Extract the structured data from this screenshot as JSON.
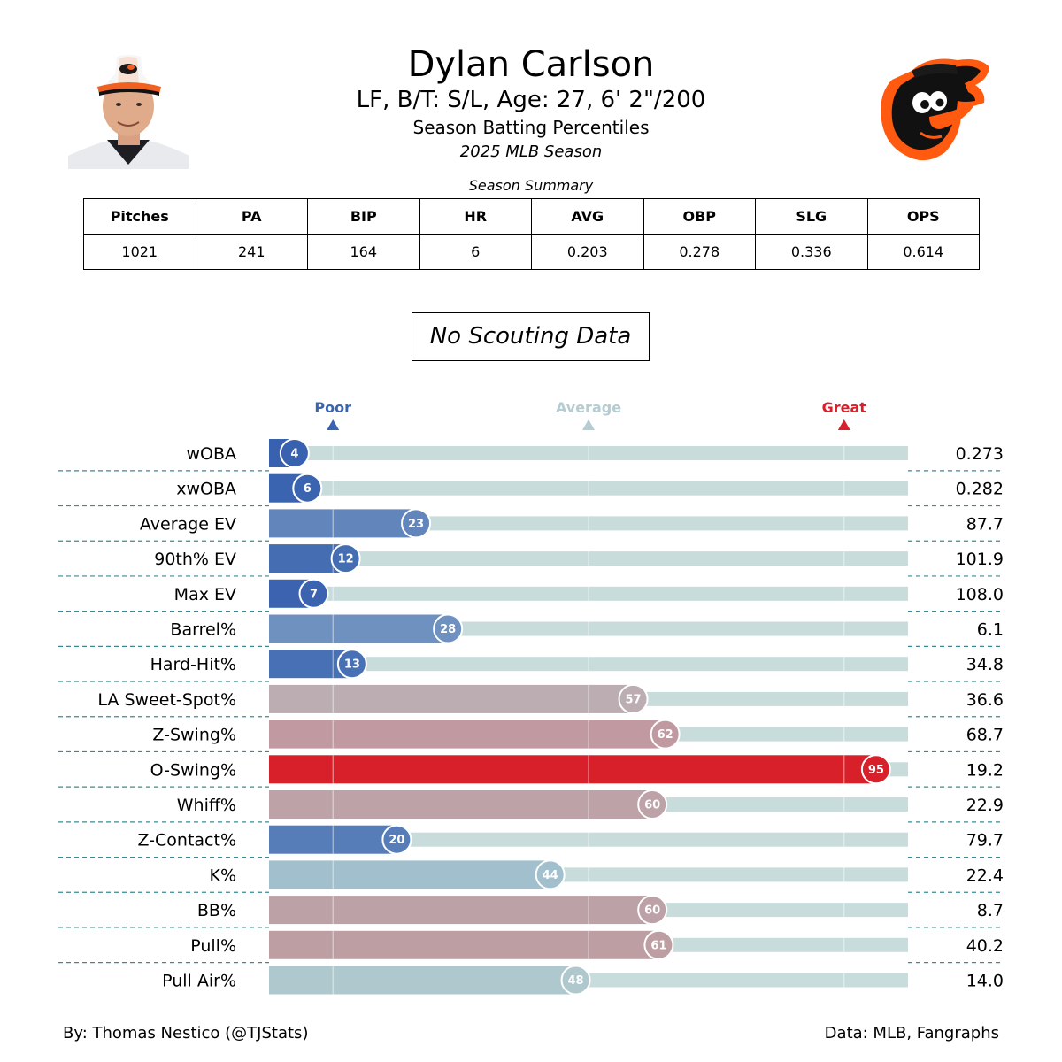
{
  "header": {
    "name": "Dylan Carlson",
    "info": "LF, B/T: S/L, Age: 27, 6' 2\"/200",
    "subtitle": "Season Batting Percentiles",
    "season": "2025 MLB Season"
  },
  "summary": {
    "title": "Season Summary",
    "headers": [
      "Pitches",
      "PA",
      "BIP",
      "HR",
      "AVG",
      "OBP",
      "SLG",
      "OPS"
    ],
    "values": [
      "1021",
      "241",
      "164",
      "6",
      "0.203",
      "0.278",
      "0.336",
      "0.614"
    ]
  },
  "scouting": {
    "text": "No Scouting Data"
  },
  "footer": {
    "left": "By: Thomas Nestico (@TJStats)",
    "right": "Data: MLB, Fangraphs"
  },
  "colors": {
    "poor": "#3a64b0",
    "average": "#b4ccd2",
    "great": "#d8202a",
    "track": "#c8dcdc",
    "divider": "#3a8a94"
  },
  "chart_data": {
    "type": "bar",
    "xlim": [
      0,
      100
    ],
    "markers": [
      {
        "label": "Poor",
        "value": 10,
        "color": "#3a64b0"
      },
      {
        "label": "Average",
        "value": 50,
        "color": "#b4ccd2"
      },
      {
        "label": "Great",
        "value": 90,
        "color": "#d8202a"
      }
    ],
    "rows": [
      {
        "metric": "wOBA",
        "percentile": 4,
        "value": "0.273",
        "color": "#3861b0"
      },
      {
        "metric": "xwOBA",
        "percentile": 6,
        "value": "0.282",
        "color": "#3a63b0"
      },
      {
        "metric": "Average EV",
        "percentile": 23,
        "value": "87.7",
        "color": "#6286bb"
      },
      {
        "metric": "90th% EV",
        "percentile": 12,
        "value": "101.9",
        "color": "#456db2"
      },
      {
        "metric": "Max EV",
        "percentile": 7,
        "value": "108.0",
        "color": "#3b63b0"
      },
      {
        "metric": "Barrel%",
        "percentile": 28,
        "value": "6.1",
        "color": "#6f91bf"
      },
      {
        "metric": "Hard-Hit%",
        "percentile": 13,
        "value": "34.8",
        "color": "#4870b4"
      },
      {
        "metric": "LA Sweet-Spot%",
        "percentile": 57,
        "value": "36.6",
        "color": "#bbadb2"
      },
      {
        "metric": "Z-Swing%",
        "percentile": 62,
        "value": "68.7",
        "color": "#c09aa0"
      },
      {
        "metric": "O-Swing%",
        "percentile": 95,
        "value": "19.2",
        "color": "#d8202a"
      },
      {
        "metric": "Whiff%",
        "percentile": 60,
        "value": "22.9",
        "color": "#bda3a8"
      },
      {
        "metric": "Z-Contact%",
        "percentile": 20,
        "value": "79.7",
        "color": "#567db8"
      },
      {
        "metric": "K%",
        "percentile": 44,
        "value": "22.4",
        "color": "#a1bfcc"
      },
      {
        "metric": "BB%",
        "percentile": 60,
        "value": "8.7",
        "color": "#bca2a6"
      },
      {
        "metric": "Pull%",
        "percentile": 61,
        "value": "40.2",
        "color": "#bd9fa3"
      },
      {
        "metric": "Pull Air%",
        "percentile": 48,
        "value": "14.0",
        "color": "#afc8ce"
      }
    ]
  }
}
